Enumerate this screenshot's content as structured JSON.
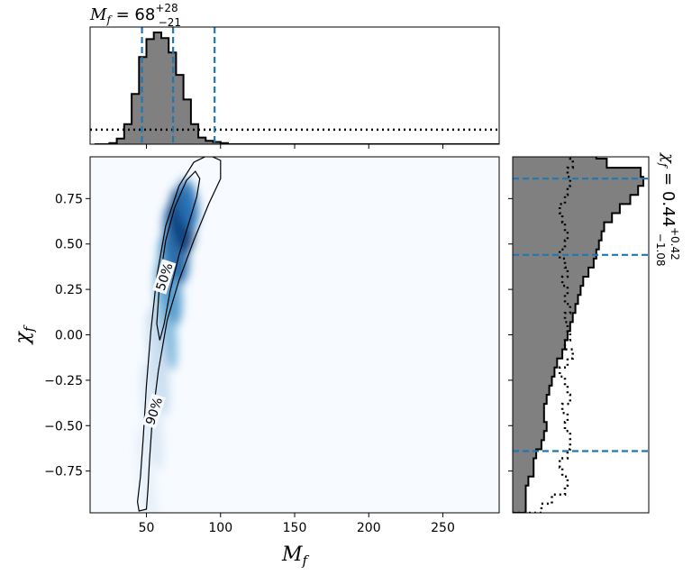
{
  "chart_data": [
    {
      "type": "heatmap",
      "panel": "joint",
      "xlabel": "M_f",
      "ylabel": "χ_f",
      "xlim": [
        12,
        288
      ],
      "ylim": [
        -0.98,
        0.98
      ],
      "xticks": [
        50,
        100,
        150,
        200,
        250
      ],
      "yticks": [
        -0.75,
        -0.5,
        -0.25,
        0.0,
        0.25,
        0.5,
        0.75
      ],
      "ytick_labels": [
        "−0.75",
        "−0.50",
        "−0.25",
        "0.00",
        "0.25",
        "0.50",
        "0.75"
      ],
      "colormap": "Blues",
      "density_ridge": [
        {
          "x": 63,
          "y": 0.1,
          "w": 6,
          "h": 0.3,
          "v": 0.45
        },
        {
          "x": 66,
          "y": 0.3,
          "w": 7,
          "h": 0.25,
          "v": 0.6
        },
        {
          "x": 70,
          "y": 0.5,
          "w": 8,
          "h": 0.22,
          "v": 0.8
        },
        {
          "x": 74,
          "y": 0.63,
          "w": 8,
          "h": 0.18,
          "v": 0.95
        },
        {
          "x": 78,
          "y": 0.72,
          "w": 7,
          "h": 0.14,
          "v": 0.75
        },
        {
          "x": 58,
          "y": -0.15,
          "w": 6,
          "h": 0.3,
          "v": 0.25
        },
        {
          "x": 54,
          "y": -0.45,
          "w": 6,
          "h": 0.3,
          "v": 0.15
        },
        {
          "x": 50,
          "y": -0.8,
          "w": 6,
          "h": 0.3,
          "v": 0.08
        }
      ],
      "contours": [
        {
          "label": "50%",
          "label_at": [
            62,
            0.32
          ],
          "points": [
            [
              57,
              0.06
            ],
            [
              59,
              0.3
            ],
            [
              63,
              0.52
            ],
            [
              69,
              0.7
            ],
            [
              77,
              0.85
            ],
            [
              83,
              0.9
            ],
            [
              86,
              0.86
            ],
            [
              84,
              0.76
            ],
            [
              78,
              0.6
            ],
            [
              72,
              0.44
            ],
            [
              66,
              0.24
            ],
            [
              62,
              0.06
            ],
            [
              59,
              -0.03
            ],
            [
              57,
              0.06
            ]
          ]
        },
        {
          "label": "90%",
          "label_at": [
            55,
            -0.42
          ],
          "points": [
            [
              44,
              -0.92
            ],
            [
              46,
              -0.78
            ],
            [
              48,
              -0.55
            ],
            [
              50,
              -0.28
            ],
            [
              53,
              0.02
            ],
            [
              57,
              0.32
            ],
            [
              63,
              0.6
            ],
            [
              72,
              0.82
            ],
            [
              82,
              0.95
            ],
            [
              92,
              0.99
            ],
            [
              100,
              0.96
            ],
            [
              100,
              0.86
            ],
            [
              92,
              0.72
            ],
            [
              82,
              0.52
            ],
            [
              72,
              0.3
            ],
            [
              64,
              0.08
            ],
            [
              58,
              -0.2
            ],
            [
              54,
              -0.46
            ],
            [
              52,
              -0.7
            ],
            [
              51,
              -0.85
            ],
            [
              50,
              -0.96
            ],
            [
              45,
              -0.97
            ],
            [
              44,
              -0.92
            ]
          ]
        }
      ]
    },
    {
      "type": "bar",
      "panel": "marginal-top",
      "title": "M_f = 68^{+28}_{−21}",
      "title_parts": {
        "symbol": "M",
        "sub": "f",
        "eq": " = 68",
        "sup": "+28",
        "low": "−21"
      },
      "xlim": [
        12,
        288
      ],
      "bin_width": 5,
      "bin_edges_start": 15,
      "values": [
        0.0,
        0.0,
        0.01,
        0.05,
        0.18,
        0.45,
        0.78,
        0.94,
        1.0,
        0.95,
        0.82,
        0.62,
        0.4,
        0.18,
        0.06,
        0.03,
        0.02,
        0.01,
        0.0,
        0.0,
        0.0,
        0.0,
        0.0,
        0.0,
        0.0,
        0.0,
        0.0,
        0.0,
        0.0,
        0.0,
        0.0,
        0.0,
        0.0,
        0.0,
        0.0,
        0.0,
        0.0,
        0.0,
        0.0,
        0.0,
        0.0,
        0.0,
        0.0,
        0.0,
        0.0,
        0.0,
        0.0,
        0.0,
        0.0,
        0.0,
        0.0,
        0.0,
        0.0,
        0.0,
        0.0
      ],
      "prior_level": 0.13,
      "quantile_lines": [
        47,
        68,
        96
      ],
      "fill_color": "#808080",
      "line_color": "#1f77b4"
    },
    {
      "type": "bar",
      "panel": "marginal-right",
      "orientation": "horizontal",
      "title": "χ_f = 0.44^{+0.42}_{−1.08}",
      "title_parts": {
        "symbol": "χ",
        "sub": "f",
        "eq": " = 0.44",
        "sup": "+0.42",
        "low": "−1.08"
      },
      "ylim": [
        -0.98,
        0.98
      ],
      "bin_width": 0.05,
      "bin_edges_start": -0.98,
      "values": [
        0.1,
        0.1,
        0.1,
        0.12,
        0.16,
        0.16,
        0.18,
        0.22,
        0.24,
        0.26,
        0.24,
        0.24,
        0.26,
        0.28,
        0.3,
        0.32,
        0.34,
        0.38,
        0.4,
        0.42,
        0.44,
        0.46,
        0.48,
        0.5,
        0.52,
        0.54,
        0.58,
        0.62,
        0.64,
        0.66,
        0.68,
        0.7,
        0.76,
        0.82,
        0.9,
        0.96,
        1.0,
        0.98,
        0.72,
        0.64
      ],
      "prior_values": [
        0.22,
        0.3,
        0.4,
        0.42,
        0.38,
        0.36,
        0.42,
        0.44,
        0.44,
        0.4,
        0.42,
        0.38,
        0.44,
        0.42,
        0.4,
        0.36,
        0.42,
        0.46,
        0.4,
        0.44,
        0.42,
        0.4,
        0.44,
        0.4,
        0.42,
        0.38,
        0.42,
        0.4,
        0.36,
        0.4,
        0.42,
        0.4,
        0.38,
        0.36,
        0.4,
        0.42,
        0.44,
        0.42,
        0.46,
        0.44
      ],
      "quantile_lines": [
        -0.64,
        0.44,
        0.86
      ],
      "fill_color": "#808080",
      "line_color": "#1f77b4"
    }
  ]
}
